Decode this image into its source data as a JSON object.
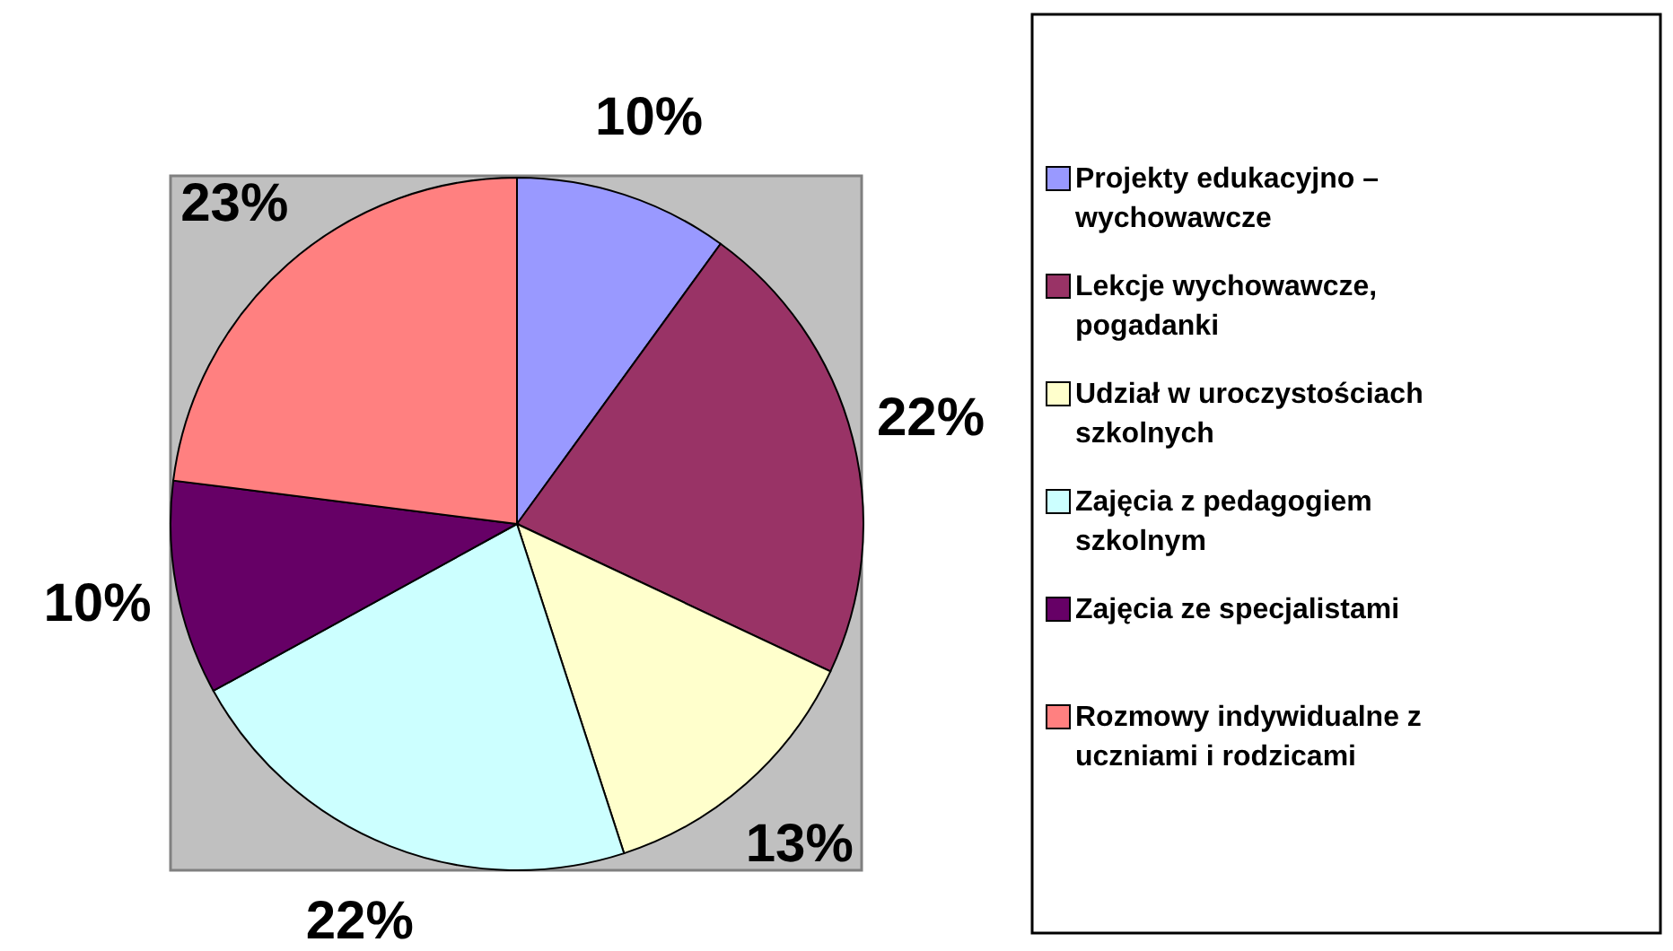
{
  "chart_data": {
    "type": "pie",
    "categories": [
      "Projekty edukacyjno – wychowawcze",
      "Lekcje wychowawcze, pogadanki",
      "Udział w uroczystościach szkolnych",
      "Zajęcia z pedagogiem szkolnym",
      "Zajęcia ze specjalistami",
      "Rozmowy indywidualne z uczniami i rodzicami"
    ],
    "values": [
      10,
      22,
      13,
      22,
      10,
      23
    ],
    "colors": [
      "#9999ff",
      "#993366",
      "#ffffcc",
      "#ccffff",
      "#660066",
      "#ff8080"
    ],
    "value_labels": [
      "10%",
      "22%",
      "13%",
      "22%",
      "10%",
      "23%"
    ],
    "legend": "right"
  }
}
